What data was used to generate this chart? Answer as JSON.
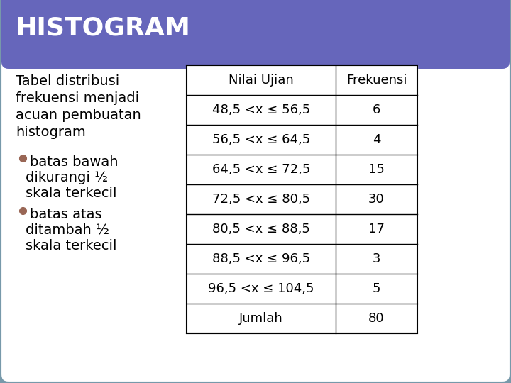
{
  "title": "HISTOGRAM",
  "title_bg": "#6666bb",
  "title_text_color": "#ffffff",
  "outer_bg": "#7799aa",
  "inner_bg": "#ffffff",
  "card_border_color": "#7799aa",
  "left_text_lines": [
    "Tabel distribusi",
    "frekuensi menjadi",
    "acuan pembuatan",
    "histogram"
  ],
  "bullet_items": [
    [
      "batas bawah",
      "dikurangi ½",
      "skala terkecil"
    ],
    [
      "batas atas",
      "ditambah ½",
      "skala terkecil"
    ]
  ],
  "bullet_color": "#996655",
  "table_header": [
    "Nilai Ujian",
    "Frekuensi"
  ],
  "table_rows": [
    [
      "48,5 <x ≤ 56,5",
      "6"
    ],
    [
      "56,5 <x ≤ 64,5",
      "4"
    ],
    [
      "64,5 <x ≤ 72,5",
      "15"
    ],
    [
      "72,5 <x ≤ 80,5",
      "30"
    ],
    [
      "80,5 <x ≤ 88,5",
      "17"
    ],
    [
      "88,5 <x ≤ 96,5",
      "3"
    ],
    [
      "96,5 <x ≤ 104,5",
      "5"
    ],
    [
      "Jumlah",
      "80"
    ]
  ],
  "font_size_title": 26,
  "font_size_body": 14,
  "font_size_table": 13
}
